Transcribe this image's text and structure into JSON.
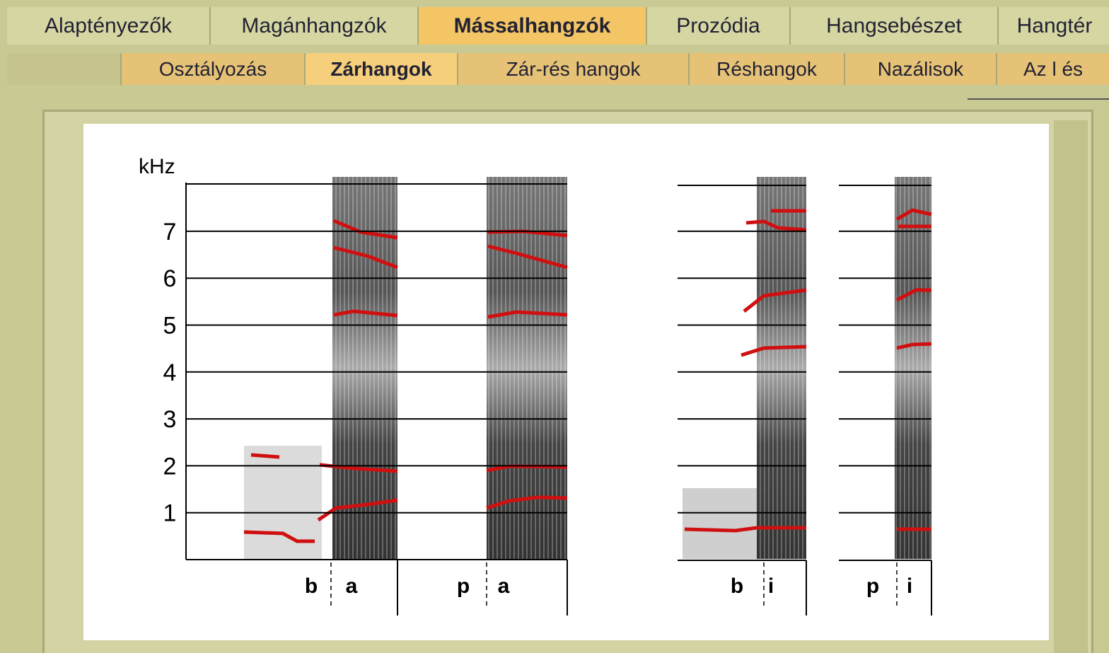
{
  "nav": {
    "tabs": [
      "Alaptényezők",
      "Magánhangzók",
      "Mássalhangzók",
      "Prozódia",
      "Hangsebészet",
      "Hangtér"
    ],
    "active": 2
  },
  "subnav": {
    "tabs": [
      "Osztályozás",
      "Zárhangok",
      "Zár-rés hangok",
      "Réshangok",
      "Nazálisok",
      "Az l és"
    ],
    "active": 1
  },
  "figure": {
    "unit": "kHz",
    "yticks": [
      1,
      2,
      3,
      4,
      5,
      6,
      7
    ],
    "segments": [
      "b",
      "a",
      "p",
      "a",
      "b",
      "i",
      "p",
      "i"
    ]
  }
}
